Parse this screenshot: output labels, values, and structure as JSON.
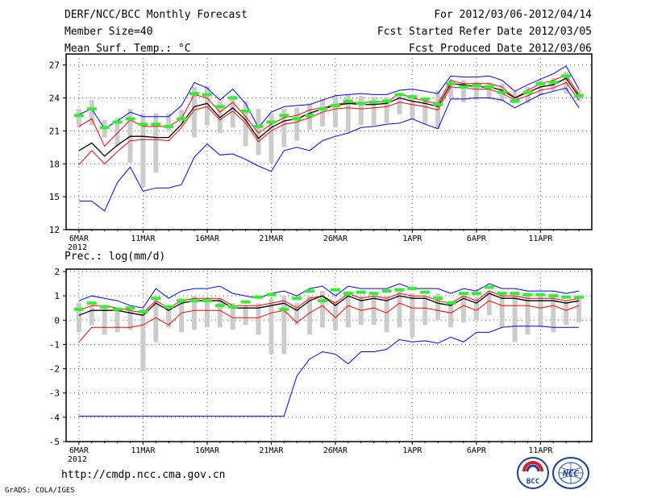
{
  "header": {
    "title": "DERF/NCC/BCC Monthly Forecast",
    "member_size": "Member Size=40",
    "variable": "Mean Surf. Temp.: °C",
    "period": "For 2012/03/06-2012/04/14",
    "started_refer": "Fcst Started Refer Date 2012/03/05",
    "produced": "Fcst Produced Date 2012/03/06"
  },
  "footer": {
    "url": "http://cmdp.ncc.cma.gov.cn",
    "grads": "GrADS: COLA/IGES",
    "logo_bcc_text": "BCC",
    "logo_ncc_text": "NCC"
  },
  "colors": {
    "ensemble_mean": "#000000",
    "upper": "#0000ff",
    "lower": "#0000ff",
    "inner": "#ff0000",
    "obs": "#33ee33",
    "box": "#cccccc",
    "grid": "#555555"
  },
  "chart_data": [
    {
      "type": "line",
      "title": "Mean Surf. Temp.: °C",
      "x_tick_labels": [
        "6MAR",
        "11MAR",
        "16MAR",
        "21MAR",
        "26MAR",
        "1APR",
        "6APR",
        "11APR"
      ],
      "x_year_label": "2012",
      "x_tick_days": [
        0,
        5,
        10,
        15,
        20,
        26,
        31,
        36
      ],
      "x_range": [
        -1,
        40
      ],
      "ylim": [
        12,
        28
      ],
      "yticks": [
        12,
        15,
        18,
        21,
        24,
        27
      ],
      "series": [
        {
          "name": "upper",
          "color": "#0000ff",
          "values": [
            22.5,
            23.0,
            21.2,
            21.9,
            22.7,
            22.3,
            22.3,
            22.3,
            23.3,
            25.4,
            24.9,
            23.8,
            24.8,
            23.5,
            21.3,
            22.7,
            23.2,
            23.3,
            23.4,
            23.8,
            24.2,
            24.3,
            24.4,
            24.3,
            24.3,
            24.7,
            24.8,
            24.6,
            24.4,
            26.0,
            25.9,
            25.9,
            26.0,
            25.6,
            24.6,
            25.2,
            25.7,
            26.2,
            26.9,
            24.8
          ]
        },
        {
          "name": "inner",
          "color": "#ff0000",
          "values": [
            21.4,
            22.1,
            19.6,
            20.8,
            22.0,
            21.4,
            21.4,
            21.4,
            22.1,
            24.3,
            24.0,
            22.7,
            23.6,
            22.3,
            20.8,
            21.6,
            22.2,
            22.4,
            22.9,
            23.1,
            23.4,
            23.6,
            23.5,
            23.7,
            23.6,
            24.4,
            24.0,
            23.7,
            23.5,
            25.6,
            25.3,
            25.3,
            25.3,
            25.0,
            24.0,
            24.7,
            25.3,
            25.6,
            26.1,
            24.3
          ]
        },
        {
          "name": "ensemble_mean",
          "color": "#000000",
          "values": [
            19.2,
            19.9,
            18.7,
            19.7,
            20.5,
            20.5,
            20.4,
            20.4,
            21.6,
            23.2,
            23.5,
            22.2,
            23.1,
            22.0,
            20.3,
            21.3,
            21.9,
            22.1,
            22.6,
            23.0,
            23.3,
            23.5,
            23.4,
            23.4,
            23.5,
            24.0,
            23.7,
            23.5,
            23.2,
            25.3,
            25.2,
            25.0,
            25.0,
            24.7,
            24.0,
            24.5,
            25.0,
            25.2,
            25.8,
            24.1
          ]
        },
        {
          "name": "inner_lower",
          "color": "#ff0000",
          "values": [
            17.9,
            19.2,
            18.0,
            19.1,
            20.1,
            20.2,
            20.2,
            20.1,
            21.3,
            22.9,
            23.2,
            22.0,
            22.8,
            21.7,
            20.0,
            21.0,
            21.6,
            21.8,
            22.2,
            22.7,
            23.0,
            23.1,
            23.0,
            23.1,
            23.2,
            23.6,
            23.4,
            23.2,
            22.9,
            25.0,
            24.9,
            24.8,
            24.8,
            24.4,
            23.8,
            24.2,
            24.7,
            24.9,
            25.4,
            23.8
          ]
        },
        {
          "name": "lower",
          "color": "#0000ff",
          "values": [
            14.6,
            14.6,
            13.7,
            16.3,
            17.7,
            15.5,
            15.8,
            15.8,
            16.1,
            18.6,
            19.8,
            18.8,
            18.9,
            18.4,
            17.8,
            17.3,
            19.2,
            19.5,
            19.2,
            20.1,
            20.5,
            20.8,
            21.3,
            21.4,
            21.6,
            21.7,
            22.1,
            21.6,
            21.2,
            23.9,
            23.9,
            24.0,
            24.0,
            23.8,
            23.1,
            23.7,
            24.3,
            24.6,
            24.9,
            23.1
          ]
        }
      ],
      "obs": [
        22.4,
        23.0,
        21.3,
        21.8,
        22.1,
        21.6,
        21.6,
        21.4,
        22.1,
        24.4,
        24.3,
        23.2,
        24.0,
        22.8,
        21.4,
        21.8,
        22.4,
        22.1,
        22.4,
        23.0,
        23.3,
        23.7,
        23.5,
        23.6,
        23.7,
        24.3,
        24.1,
        23.9,
        23.4,
        25.3,
        25.0,
        25.1,
        25.0,
        24.5,
        23.7,
        24.5,
        25.3,
        25.4,
        26.0,
        24.2
      ],
      "boxes": [
        [
          21.3,
          23.0
        ],
        [
          21.5,
          23.8
        ],
        [
          20.4,
          22.0
        ],
        [
          19.6,
          22.2
        ],
        [
          18.1,
          23.0
        ],
        [
          15.9,
          22.6
        ],
        [
          17.2,
          22.6
        ],
        [
          21.0,
          22.6
        ],
        [
          21.7,
          22.9
        ],
        [
          20.4,
          25.0
        ],
        [
          21.5,
          25.1
        ],
        [
          20.8,
          23.7
        ],
        [
          21.3,
          24.2
        ],
        [
          19.6,
          23.7
        ],
        [
          18.8,
          23.0
        ],
        [
          18.1,
          22.6
        ],
        [
          19.5,
          23.0
        ],
        [
          20.1,
          23.1
        ],
        [
          21.1,
          23.5
        ],
        [
          21.4,
          23.9
        ],
        [
          21.3,
          24.2
        ],
        [
          20.9,
          24.3
        ],
        [
          21.5,
          24.2
        ],
        [
          21.5,
          24.1
        ],
        [
          21.7,
          24.0
        ],
        [
          22.5,
          24.5
        ],
        [
          22.0,
          24.3
        ],
        [
          21.6,
          24.0
        ],
        [
          21.2,
          24.7
        ],
        [
          23.9,
          25.7
        ],
        [
          23.6,
          25.6
        ],
        [
          23.8,
          25.5
        ],
        [
          23.9,
          25.4
        ],
        [
          23.7,
          25.3
        ],
        [
          23.5,
          24.6
        ],
        [
          23.5,
          25.0
        ],
        [
          24.2,
          25.6
        ],
        [
          24.6,
          25.8
        ],
        [
          24.4,
          26.4
        ],
        [
          23.7,
          24.8
        ]
      ]
    },
    {
      "type": "line",
      "title": "Prec.: log(mm/d)",
      "x_tick_labels": [
        "6MAR",
        "11MAR",
        "16MAR",
        "21MAR",
        "26MAR",
        "1APR",
        "6APR",
        "11APR"
      ],
      "x_year_label": "2012",
      "x_tick_days": [
        0,
        5,
        10,
        15,
        20,
        26,
        31,
        36
      ],
      "x_range": [
        -1,
        40
      ],
      "ylim": [
        -5,
        2.1
      ],
      "yticks": [
        -5,
        -4,
        -3,
        -2,
        -1,
        0,
        1,
        2
      ],
      "series": [
        {
          "name": "upper",
          "color": "#0000ff",
          "values": [
            0.8,
            1.0,
            0.9,
            0.8,
            0.6,
            0.5,
            1.3,
            0.9,
            1.2,
            1.3,
            1.3,
            1.4,
            1.1,
            1.0,
            0.9,
            1.1,
            1.2,
            1.0,
            1.3,
            1.4,
            1.0,
            1.4,
            1.3,
            1.3,
            1.3,
            1.5,
            1.3,
            1.3,
            1.3,
            1.1,
            1.3,
            1.2,
            1.5,
            1.3,
            1.3,
            1.2,
            1.2,
            1.2,
            1.1,
            1.2
          ]
        },
        {
          "name": "inner",
          "color": "#ff0000",
          "values": [
            0.4,
            0.6,
            0.6,
            0.5,
            0.4,
            0.3,
            0.8,
            0.5,
            0.8,
            0.9,
            0.9,
            0.9,
            0.6,
            0.6,
            0.6,
            0.7,
            0.8,
            0.5,
            0.9,
            1.0,
            0.7,
            1.1,
            0.9,
            1.0,
            0.9,
            1.1,
            1.0,
            1.0,
            0.8,
            0.7,
            1.0,
            0.8,
            1.2,
            1.0,
            1.0,
            0.9,
            0.9,
            0.9,
            0.8,
            0.9
          ]
        },
        {
          "name": "ensemble_mean",
          "color": "#000000",
          "values": [
            0.2,
            0.4,
            0.4,
            0.4,
            0.3,
            0.2,
            0.7,
            0.4,
            0.7,
            0.8,
            0.8,
            0.8,
            0.5,
            0.5,
            0.5,
            0.6,
            0.7,
            0.4,
            0.8,
            1.0,
            0.6,
            1.0,
            0.8,
            0.9,
            0.8,
            1.0,
            0.9,
            0.9,
            0.7,
            0.6,
            0.9,
            0.7,
            1.1,
            0.9,
            0.9,
            0.8,
            0.8,
            0.8,
            0.7,
            0.8
          ]
        },
        {
          "name": "inner_lower",
          "color": "#ff0000",
          "values": [
            -0.9,
            -0.3,
            -0.3,
            -0.3,
            -0.3,
            -0.2,
            0.1,
            -0.2,
            0.3,
            0.4,
            0.4,
            0.4,
            0.1,
            0.1,
            0.1,
            0.3,
            0.4,
            -0.1,
            0.3,
            0.6,
            0.1,
            0.6,
            0.4,
            0.5,
            0.3,
            0.7,
            0.5,
            0.5,
            0.4,
            0.3,
            0.6,
            0.4,
            0.8,
            0.6,
            0.6,
            0.6,
            0.5,
            0.6,
            0.4,
            0.6
          ]
        },
        {
          "name": "lower",
          "color": "#0000ff",
          "values": [
            -3.95,
            -3.95,
            -3.95,
            -3.95,
            -3.95,
            -3.95,
            -3.95,
            -3.95,
            -3.95,
            -3.95,
            -3.95,
            -3.95,
            -3.95,
            -3.95,
            -3.95,
            -3.95,
            -3.95,
            -2.3,
            -1.6,
            -1.3,
            -1.4,
            -1.8,
            -1.3,
            -1.3,
            -1.2,
            -0.8,
            -0.9,
            -0.85,
            -0.95,
            -0.7,
            -0.9,
            -0.5,
            -0.5,
            -0.3,
            -0.25,
            -0.25,
            -0.25,
            -0.3,
            -0.3,
            -0.3
          ]
        }
      ],
      "obs": [
        0.45,
        0.7,
        0.55,
        0.45,
        0.5,
        0.35,
        0.9,
        0.55,
        0.8,
        0.8,
        0.8,
        0.6,
        0.55,
        0.75,
        0.95,
        1.05,
        0.45,
        0.9,
        1.2,
        0.8,
        1.25,
        1.1,
        1.15,
        1.1,
        1.2,
        1.25,
        1.3,
        1.15,
        0.9,
        0.7,
        1.1,
        1.1,
        1.35,
        1.1,
        1.1,
        1.05,
        1.05,
        1.0,
        0.95,
        0.95
      ],
      "boxes": [
        [
          -0.5,
          0.7
        ],
        [
          -0.2,
          0.6
        ],
        [
          -0.6,
          0.6
        ],
        [
          -0.5,
          0.5
        ],
        [
          -0.4,
          0.5
        ],
        [
          -2.1,
          0.4
        ],
        [
          -0.9,
          0.9
        ],
        [
          -0.3,
          0.6
        ],
        [
          -0.5,
          0.9
        ],
        [
          -0.4,
          1.0
        ],
        [
          -0.3,
          0.9
        ],
        [
          -0.3,
          0.9
        ],
        [
          -0.4,
          0.7
        ],
        [
          -0.2,
          0.6
        ],
        [
          -0.6,
          0.7
        ],
        [
          -1.4,
          0.9
        ],
        [
          -1.4,
          1.0
        ],
        [
          -0.2,
          0.7
        ],
        [
          -0.6,
          1.0
        ],
        [
          -0.3,
          1.2
        ],
        [
          -0.4,
          0.8
        ],
        [
          -0.3,
          1.2
        ],
        [
          -0.2,
          1.0
        ],
        [
          -0.2,
          1.0
        ],
        [
          -0.5,
          1.0
        ],
        [
          -0.3,
          1.2
        ],
        [
          -0.7,
          1.1
        ],
        [
          -0.2,
          1.0
        ],
        [
          0.0,
          1.1
        ],
        [
          -0.3,
          0.8
        ],
        [
          -0.1,
          1.0
        ],
        [
          0.0,
          0.9
        ],
        [
          0.2,
          1.2
        ],
        [
          -0.3,
          1.1
        ],
        [
          -0.9,
          1.0
        ],
        [
          -0.6,
          1.0
        ],
        [
          -0.3,
          1.0
        ],
        [
          -0.5,
          1.0
        ],
        [
          -0.2,
          0.8
        ],
        [
          -0.1,
          0.9
        ]
      ]
    }
  ]
}
